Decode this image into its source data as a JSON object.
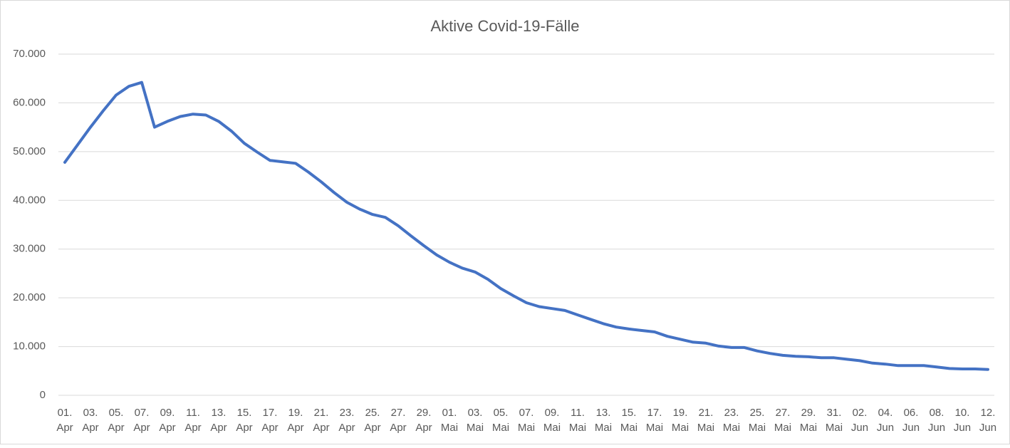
{
  "chart_data": {
    "type": "line",
    "title": "Aktive Covid-19-Fälle",
    "categories": [
      "01. Apr",
      null,
      "03. Apr",
      null,
      "05. Apr",
      null,
      "07. Apr",
      null,
      "09. Apr",
      null,
      "11. Apr",
      null,
      "13. Apr",
      null,
      "15. Apr",
      null,
      "17. Apr",
      null,
      "19. Apr",
      null,
      "21. Apr",
      null,
      "23. Apr",
      null,
      "25. Apr",
      null,
      "27. Apr",
      null,
      "29. Apr",
      null,
      "01. Mai",
      null,
      "03. Mai",
      null,
      "05. Mai",
      null,
      "07. Mai",
      null,
      "09. Mai",
      null,
      "11. Mai",
      null,
      "13. Mai",
      null,
      "15. Mai",
      null,
      "17. Mai",
      null,
      "19. Mai",
      null,
      "21. Mai",
      null,
      "23. Mai",
      null,
      "25. Mai",
      null,
      "27. Mai",
      null,
      "29. Mai",
      null,
      "31. Mai",
      null,
      "02. Jun",
      null,
      "04. Jun",
      null,
      "06. Jun",
      null,
      "08. Jun",
      null,
      "10. Jun",
      null,
      "12. Jun"
    ],
    "values": [
      47800,
      51400,
      55000,
      58400,
      61600,
      63400,
      64200,
      55000,
      56200,
      57200,
      57700,
      57500,
      56200,
      54200,
      51700,
      49900,
      48200,
      47900,
      47600,
      45800,
      43800,
      41600,
      39600,
      38200,
      37100,
      36500,
      34800,
      32700,
      30700,
      28800,
      27300,
      26100,
      25300,
      23800,
      21900,
      20400,
      19000,
      18200,
      17800,
      17400,
      16500,
      15600,
      14700,
      14000,
      13600,
      13300,
      13000,
      12100,
      11500,
      10900,
      10700,
      10100,
      9800,
      9800,
      9100,
      8600,
      8200,
      8000,
      7900,
      7700,
      7700,
      7400,
      7100,
      6600,
      6400,
      6100,
      6100,
      6100,
      5800,
      5500,
      5400,
      5400,
      5300
    ],
    "color": "#4472c4",
    "ylim": [
      0,
      70000
    ],
    "yticks": [
      0,
      {
        "value": 10000,
        "label": "10.000"
      },
      {
        "value": 20000,
        "label": "20.000"
      },
      {
        "value": 30000,
        "label": "30.000"
      },
      {
        "value": 40000,
        "label": "40.000"
      },
      {
        "value": 50000,
        "label": "50.000"
      },
      {
        "value": 60000,
        "label": "60.000"
      },
      {
        "value": 70000,
        "label": "70.000"
      }
    ],
    "grid": true
  }
}
